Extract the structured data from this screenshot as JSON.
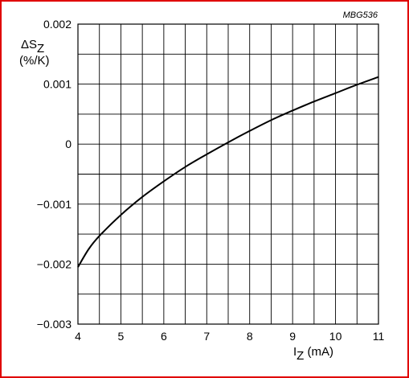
{
  "chart_data": {
    "type": "line",
    "code": "MBG536",
    "ylabel_line1": "ΔS",
    "ylabel_sub": "Z",
    "ylabel_line2": "(%/K)",
    "xlabel_main": "I",
    "xlabel_sub": "Z",
    "xlabel_unit": " (mA)",
    "xlim": [
      4,
      11
    ],
    "ylim": [
      -0.003,
      0.002
    ],
    "x_ticks": [
      "4",
      "5",
      "6",
      "7",
      "8",
      "9",
      "10",
      "11"
    ],
    "y_ticks": [
      "0.002",
      "0.001",
      "0",
      "−0.001",
      "−0.002",
      "−0.003"
    ],
    "grid": true,
    "series": [
      {
        "x": [
          4.0,
          4.25,
          4.5,
          5.0,
          5.5,
          6.0,
          6.5,
          7.0,
          7.5,
          8.0,
          8.5,
          9.0,
          9.5,
          10.0,
          10.5,
          11.0
        ],
        "y": [
          -0.00205,
          -0.00175,
          -0.00153,
          -0.00118,
          -0.00088,
          -0.00062,
          -0.00038,
          -0.00017,
          3e-05,
          0.00022,
          0.0004,
          0.00056,
          0.00071,
          0.00085,
          0.00099,
          0.00112
        ]
      }
    ]
  }
}
